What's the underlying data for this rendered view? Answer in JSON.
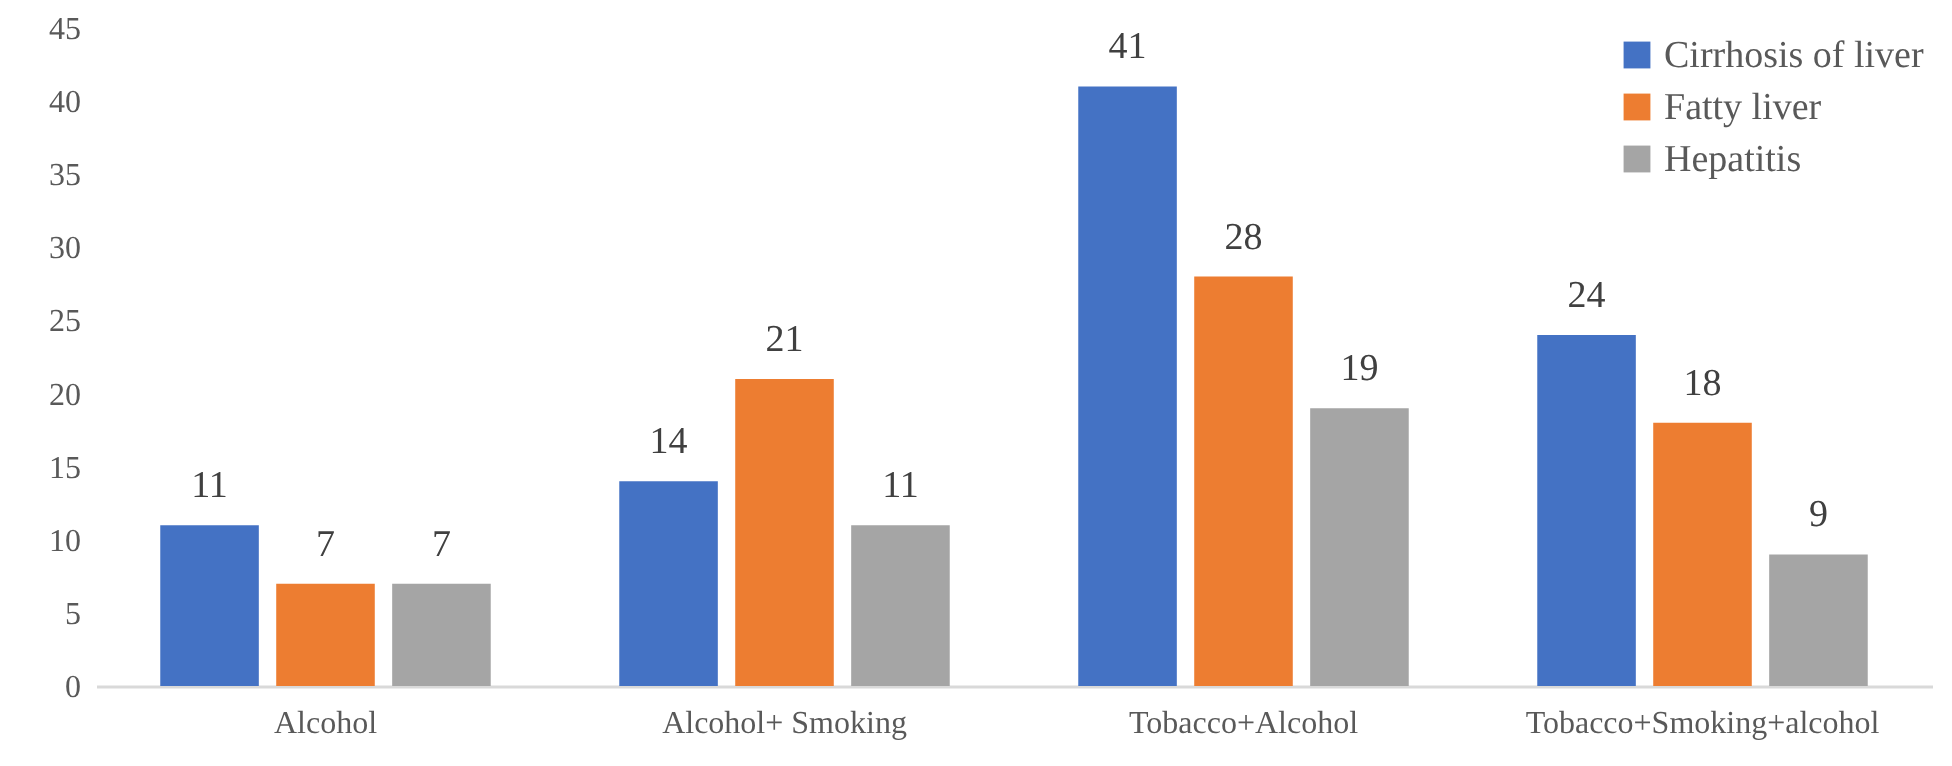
{
  "chart_data": {
    "type": "bar",
    "categories": [
      "Alcohol",
      "Alcohol+ Smoking",
      "Tobacco+Alcohol",
      "Tobacco+Smoking+alcohol"
    ],
    "series": [
      {
        "name": "Cirrhosis of liver",
        "color": "#4472c4",
        "values": [
          11,
          14,
          41,
          24
        ]
      },
      {
        "name": "Fatty liver",
        "color": "#ed7d31",
        "values": [
          7,
          21,
          28,
          18
        ]
      },
      {
        "name": "Hepatitis",
        "color": "#a5a5a5",
        "values": [
          7,
          11,
          19,
          9
        ]
      }
    ],
    "ylim": [
      0,
      45
    ],
    "yticks": [
      0,
      5,
      10,
      15,
      20,
      25,
      30,
      35,
      40,
      45
    ],
    "data_labels": true,
    "legend": "top right",
    "grid": false
  }
}
